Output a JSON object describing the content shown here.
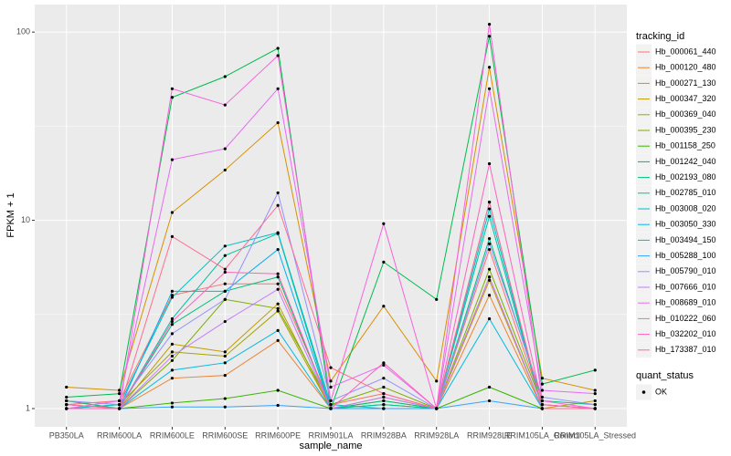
{
  "chart_data": {
    "type": "line",
    "x_label": "sample_name",
    "y_label": "FPKM + 1",
    "categories": [
      "PB350LA",
      "RRIM600LA",
      "RRIM600LE",
      "RRIM600SE",
      "RRIM600PE",
      "RRIM901LA",
      "RRIM928BA",
      "RRIM928LA",
      "RRIM928LE",
      "RRIM105LA_Control",
      "RRIM105LA_Stressed"
    ],
    "log_y": true,
    "ylim": [
      0.8,
      140
    ],
    "yticks": [
      1,
      10,
      100
    ],
    "grid": true,
    "legend_title": "tracking_id",
    "legend_position": "right",
    "point_legend_title": "quant_status",
    "point_legend_labels": [
      "OK"
    ],
    "point_color": "#000000",
    "series": [
      {
        "name": "Hb_000061_440",
        "color": "#F8766D",
        "values": [
          1.05,
          1.1,
          4.0,
          4.6,
          4.6,
          1.05,
          1.2,
          1.0,
          7,
          1.05,
          1.0
        ]
      },
      {
        "name": "Hb_000120_480",
        "color": "#EA8331",
        "values": [
          1.0,
          1.0,
          1.45,
          1.5,
          2.3,
          1.0,
          1.1,
          1.0,
          4.0,
          1.0,
          1.0
        ]
      },
      {
        "name": "Hb_000271_130",
        "color": "#D89000",
        "values": [
          1.3,
          1.25,
          11,
          18.5,
          33,
          1.4,
          3.5,
          1.4,
          65,
          1.45,
          1.25
        ]
      },
      {
        "name": "Hb_000347_320",
        "color": "#C09B00",
        "values": [
          1.1,
          1.0,
          2.2,
          2.0,
          3.6,
          1.0,
          1.15,
          1.0,
          4.8,
          1.0,
          1.1
        ]
      },
      {
        "name": "Hb_000369_040",
        "color": "#A3A500",
        "values": [
          1.0,
          1.05,
          2.0,
          1.9,
          3.3,
          1.0,
          1.0,
          1.0,
          5.0,
          1.0,
          1.0
        ]
      },
      {
        "name": "Hb_000395_230",
        "color": "#7CAE00",
        "values": [
          1.0,
          1.0,
          1.8,
          3.8,
          3.4,
          1.05,
          1.3,
          1.0,
          5.5,
          1.05,
          1.0
        ]
      },
      {
        "name": "Hb_001158_250",
        "color": "#39B600",
        "values": [
          1.0,
          1.0,
          1.07,
          1.13,
          1.25,
          1.0,
          1.05,
          1.0,
          1.3,
          1.0,
          1.0
        ]
      },
      {
        "name": "Hb_001242_040",
        "color": "#00BB4E",
        "values": [
          1.15,
          1.2,
          45,
          58,
          82,
          1.0,
          6.0,
          3.8,
          95,
          1.35,
          1.6
        ]
      },
      {
        "name": "Hb_002193_080",
        "color": "#00BF7D",
        "values": [
          1.1,
          1.0,
          2.8,
          4.2,
          5.0,
          1.0,
          1.1,
          1.0,
          8.0,
          1.1,
          1.05
        ]
      },
      {
        "name": "Hb_002785_010",
        "color": "#00C1A3",
        "values": [
          1.05,
          1.0,
          3.0,
          6.5,
          8.5,
          1.0,
          1.05,
          1.0,
          10.5,
          1.0,
          1.0
        ]
      },
      {
        "name": "Hb_003008_020",
        "color": "#00BFC4",
        "values": [
          1.0,
          1.05,
          3.9,
          7.3,
          8.6,
          1.05,
          1.0,
          1.0,
          11.5,
          1.0,
          1.0
        ]
      },
      {
        "name": "Hb_003050_330",
        "color": "#00BAE0",
        "values": [
          1.0,
          1.0,
          1.6,
          1.75,
          2.6,
          1.0,
          1.0,
          1.0,
          3.0,
          1.0,
          1.0
        ]
      },
      {
        "name": "Hb_003494_150",
        "color": "#00B0F6",
        "values": [
          1.0,
          1.0,
          4.2,
          4.2,
          7.0,
          1.0,
          1.0,
          1.0,
          12.5,
          1.0,
          1.0
        ]
      },
      {
        "name": "Hb_005288_100",
        "color": "#35A2FF",
        "values": [
          1.0,
          1.0,
          1.02,
          1.02,
          1.04,
          1.0,
          1.0,
          1.0,
          1.1,
          1.0,
          1.0
        ]
      },
      {
        "name": "Hb_005790_010",
        "color": "#9590FF",
        "values": [
          1.1,
          1.05,
          2.5,
          3.8,
          14,
          1.1,
          1.45,
          1.0,
          7.5,
          1.15,
          1.05
        ]
      },
      {
        "name": "Hb_007666_010",
        "color": "#C77CFF",
        "values": [
          1.0,
          1.0,
          1.9,
          2.9,
          4.3,
          1.0,
          1.15,
          1.0,
          5.0,
          1.0,
          1.0
        ]
      },
      {
        "name": "Hb_008689_010",
        "color": "#E76BF3",
        "values": [
          1.0,
          1.1,
          21,
          24,
          50,
          1.3,
          1.7,
          1.0,
          50,
          1.25,
          1.2
        ]
      },
      {
        "name": "Hb_010222_060",
        "color": "#FA62DB",
        "values": [
          1.05,
          1.0,
          50,
          41,
          75,
          1.1,
          9.6,
          1.0,
          110,
          1.1,
          1.0
        ]
      },
      {
        "name": "Hb_032202_010",
        "color": "#FF62BC",
        "values": [
          1.0,
          1.0,
          2.9,
          5.3,
          5.2,
          1.0,
          1.75,
          1.0,
          20,
          1.05,
          1.0
        ]
      },
      {
        "name": "Hb_173387_010",
        "color": "#FF6C91",
        "values": [
          1.05,
          1.0,
          8.2,
          5.5,
          12,
          1.65,
          1.2,
          1.0,
          12.5,
          1.0,
          1.0
        ]
      }
    ]
  }
}
